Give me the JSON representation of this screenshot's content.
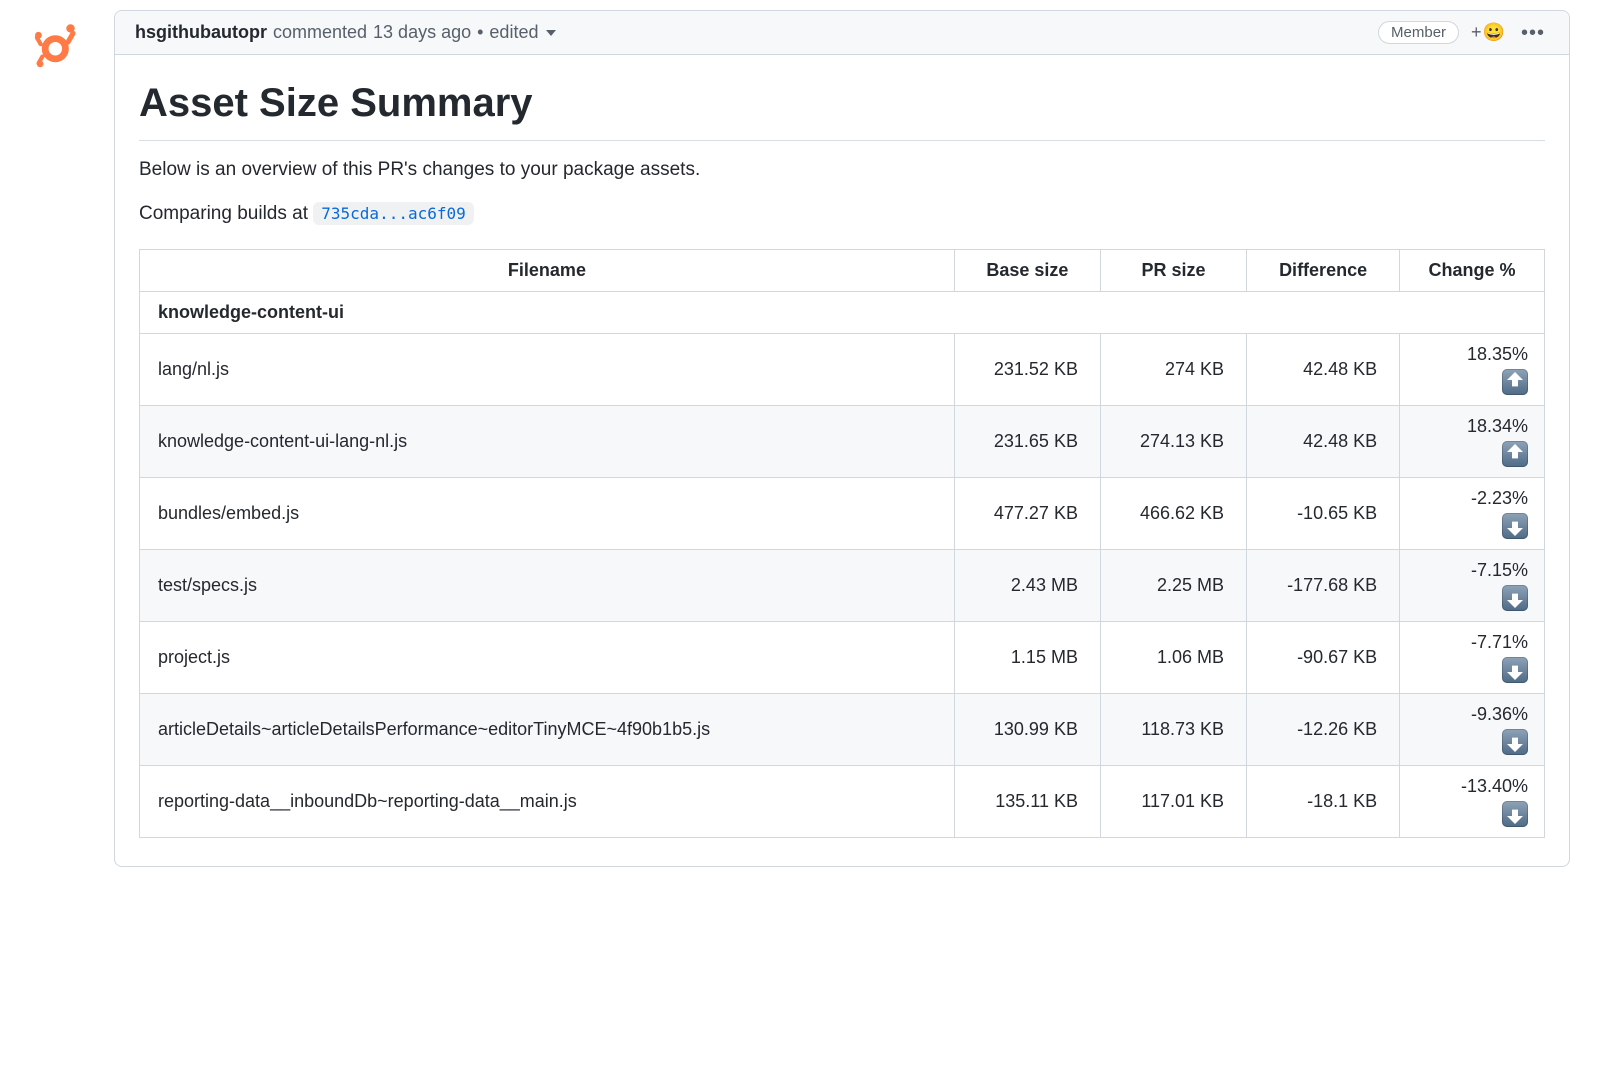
{
  "avatar": {
    "color": "#ff7a45"
  },
  "header": {
    "author": "hsgithubautopr",
    "commented_label": "commented",
    "time_ago": "13 days ago",
    "bullet": "•",
    "edited_label": "edited",
    "member_badge": "Member"
  },
  "title": "Asset Size Summary",
  "description": "Below is an overview of this PR's changes to your package assets.",
  "compare_prefix": "Comparing builds at",
  "compare_link": "735cda...ac6f09",
  "table": {
    "columns": [
      "Filename",
      "Base size",
      "PR size",
      "Difference",
      "Change %"
    ],
    "group": "knowledge-content-ui",
    "rows": [
      {
        "filename": "lang/nl.js",
        "base": "231.52 KB",
        "pr": "274 KB",
        "diff": "42.48 KB",
        "change": "18.35%",
        "dir": "up"
      },
      {
        "filename": "knowledge-content-ui-lang-nl.js",
        "base": "231.65 KB",
        "pr": "274.13 KB",
        "diff": "42.48 KB",
        "change": "18.34%",
        "dir": "up"
      },
      {
        "filename": "bundles/embed.js",
        "base": "477.27 KB",
        "pr": "466.62 KB",
        "diff": "-10.65 KB",
        "change": "-2.23%",
        "dir": "down"
      },
      {
        "filename": "test/specs.js",
        "base": "2.43 MB",
        "pr": "2.25 MB",
        "diff": "-177.68 KB",
        "change": "-7.15%",
        "dir": "down"
      },
      {
        "filename": "project.js",
        "base": "1.15 MB",
        "pr": "1.06 MB",
        "diff": "-90.67 KB",
        "change": "-7.71%",
        "dir": "down"
      },
      {
        "filename": "articleDetails~articleDetailsPerformance~editorTinyMCE~4f90b1b5.js",
        "base": "130.99 KB",
        "pr": "118.73 KB",
        "diff": "-12.26 KB",
        "change": "-9.36%",
        "dir": "down"
      },
      {
        "filename": "reporting-data__inboundDb~reporting-data__main.js",
        "base": "135.11 KB",
        "pr": "117.01 KB",
        "diff": "-18.1 KB",
        "change": "-13.40%",
        "dir": "down"
      }
    ]
  }
}
